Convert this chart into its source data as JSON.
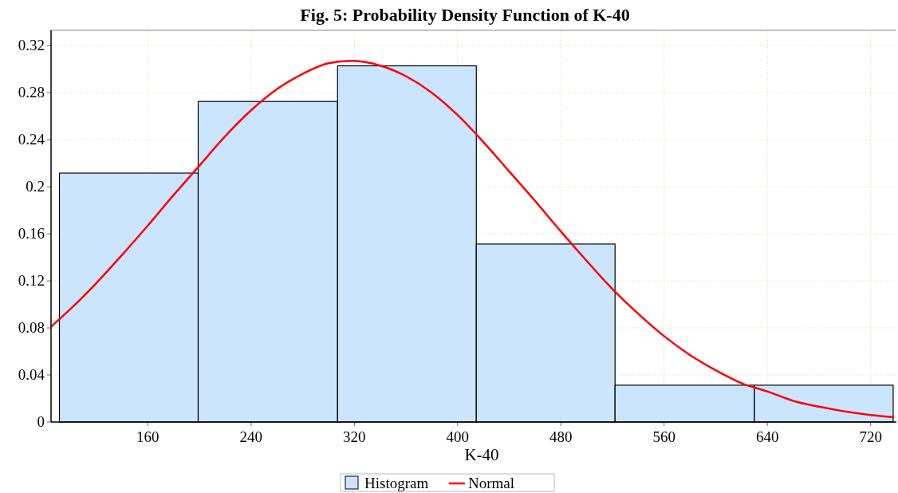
{
  "chart_data": {
    "type": "histogram",
    "title": "Fig. 5: Probability Density Function of K-40",
    "xlabel": "K-40",
    "bins": [
      91.5,
      199,
      307,
      414.5,
      522,
      630,
      737.5
    ],
    "series": [
      {
        "name": "Histogram",
        "color": "#cce5ff",
        "values": [
          0.2116,
          0.2725,
          0.3028,
          0.1513,
          0.0313,
          0.0313
        ]
      },
      {
        "name": "Normal",
        "type": "line",
        "color": "#ff0000",
        "x": [
          85,
          100,
          120,
          140,
          160,
          180,
          200,
          220,
          240,
          260,
          280,
          300,
          318,
          340,
          360,
          380,
          400,
          420,
          440,
          460,
          480,
          500,
          520,
          540,
          560,
          580,
          600,
          620,
          640,
          660,
          680,
          700,
          720,
          738
        ],
        "values": [
          0.081,
          0.096,
          0.118,
          0.142,
          0.167,
          0.193,
          0.218,
          0.243,
          0.265,
          0.283,
          0.296,
          0.305,
          0.307,
          0.303,
          0.294,
          0.28,
          0.261,
          0.238,
          0.213,
          0.188,
          0.162,
          0.137,
          0.113,
          0.092,
          0.073,
          0.057,
          0.044,
          0.033,
          0.026,
          0.018,
          0.013,
          0.009,
          0.006,
          0.004
        ]
      }
    ],
    "xlim": [
      85,
      740
    ],
    "ylim": [
      0,
      0.333
    ],
    "xticks": [
      160,
      240,
      320,
      400,
      480,
      560,
      640,
      720
    ],
    "yticks": [
      0,
      0.04,
      0.08,
      0.12,
      0.16,
      0.2,
      0.24,
      0.28,
      0.32
    ],
    "grid": true,
    "legend": "bottom"
  }
}
